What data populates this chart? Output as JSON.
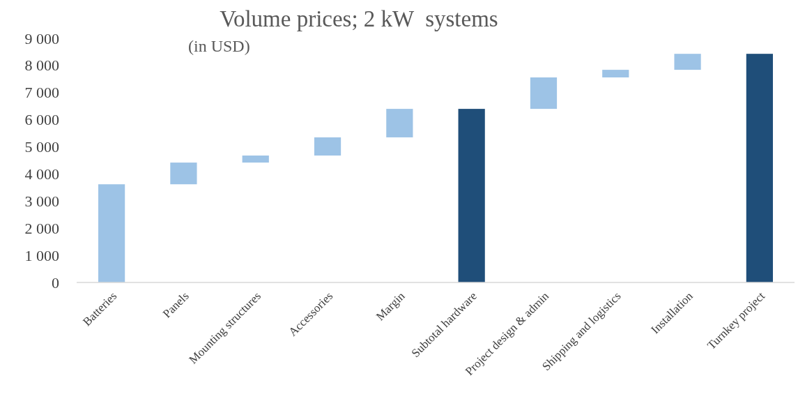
{
  "chart_data": {
    "type": "bar",
    "title": "Volume prices; 2 kW  systems",
    "subtitle": "(in USD)",
    "categories": [
      "Batteries",
      "Panels",
      "Mounting structures",
      "Accessories",
      "Margin",
      "Subtotal hardware",
      "Project design & admin",
      "Shipping and logistics",
      "Installation",
      "Turnkey project"
    ],
    "values": [
      3620,
      800,
      260,
      670,
      1050,
      6400,
      1160,
      280,
      590,
      8430
    ],
    "base": [
      0,
      3620,
      4420,
      4680,
      5350,
      0,
      6400,
      7560,
      7840,
      0
    ],
    "colors": [
      "#9dc3e6",
      "#9dc3e6",
      "#9dc3e6",
      "#9dc3e6",
      "#9dc3e6",
      "#1f4e79",
      "#9dc3e6",
      "#9dc3e6",
      "#9dc3e6",
      "#1f4e79"
    ],
    "ylim": [
      0,
      9000
    ],
    "yticks": [
      0,
      {
        "value": 1000,
        "label": "1 000"
      },
      {
        "value": 2000,
        "label": "2 000"
      },
      {
        "value": 3000,
        "label": "3 000"
      },
      {
        "value": 4000,
        "label": "4 000"
      },
      {
        "value": 5000,
        "label": "5 000"
      },
      {
        "value": 6000,
        "label": "6 000"
      },
      {
        "value": 7000,
        "label": "7 000"
      },
      {
        "value": 8000,
        "label": "8 000"
      },
      {
        "value": 9000,
        "label": "9 000"
      }
    ]
  }
}
